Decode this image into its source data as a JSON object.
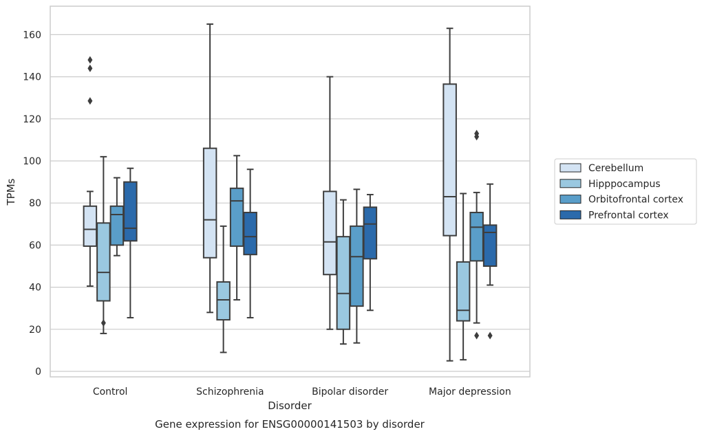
{
  "chart_data": {
    "type": "box",
    "caption": "Gene expression for ENSG00000141503 by disorder",
    "xlabel": "Disorder",
    "ylabel": "TPMs",
    "ylim": [
      -2.5,
      174
    ],
    "yticks": [
      0,
      20,
      40,
      60,
      80,
      100,
      120,
      140,
      160
    ],
    "grid": true,
    "legend_position": "right",
    "categories": [
      "Control",
      "Schizophrenia",
      "Bipolar disorder",
      "Major depression"
    ],
    "series": [
      {
        "name": "Cerebellum",
        "color": "#d3e3f3",
        "boxes": [
          {
            "whisker_low": 40.5,
            "q1": 59.5,
            "median": 67.5,
            "q3": 78.5,
            "whisker_high": 85.5,
            "outliers": [
              128.5,
              144,
              148
            ]
          },
          {
            "whisker_low": 28,
            "q1": 54,
            "median": 72,
            "q3": 106,
            "whisker_high": 165,
            "outliers": []
          },
          {
            "whisker_low": 20,
            "q1": 46,
            "median": 61.5,
            "q3": 85.5,
            "whisker_high": 140,
            "outliers": []
          },
          {
            "whisker_low": 5,
            "q1": 64.5,
            "median": 83,
            "q3": 136.5,
            "whisker_high": 163,
            "outliers": []
          }
        ]
      },
      {
        "name": "Hipppocampus",
        "color": "#9ac8e0",
        "boxes": [
          {
            "whisker_low": 18,
            "q1": 33.5,
            "median": 47,
            "q3": 70.5,
            "whisker_high": 102,
            "outliers": [
              23
            ]
          },
          {
            "whisker_low": 9,
            "q1": 24.5,
            "median": 34,
            "q3": 42.5,
            "whisker_high": 69,
            "outliers": []
          },
          {
            "whisker_low": 13,
            "q1": 20,
            "median": 37,
            "q3": 64,
            "whisker_high": 81.5,
            "outliers": []
          },
          {
            "whisker_low": 5.5,
            "q1": 24,
            "median": 29,
            "q3": 52,
            "whisker_high": 84.5,
            "outliers": []
          }
        ]
      },
      {
        "name": "Orbitofrontal cortex",
        "color": "#5a9ec9",
        "boxes": [
          {
            "whisker_low": 55,
            "q1": 60,
            "median": 74.5,
            "q3": 78.5,
            "whisker_high": 92,
            "outliers": []
          },
          {
            "whisker_low": 34,
            "q1": 59.5,
            "median": 81,
            "q3": 87,
            "whisker_high": 102.5,
            "outliers": []
          },
          {
            "whisker_low": 13.5,
            "q1": 31,
            "median": 54.5,
            "q3": 69,
            "whisker_high": 86.5,
            "outliers": []
          },
          {
            "whisker_low": 23,
            "q1": 52.5,
            "median": 68.5,
            "q3": 75.5,
            "whisker_high": 85,
            "outliers": [
              17,
              111.5,
              113
            ]
          }
        ]
      },
      {
        "name": "Prefrontal cortex",
        "color": "#2b6aab",
        "boxes": [
          {
            "whisker_low": 25.5,
            "q1": 62,
            "median": 68,
            "q3": 90,
            "whisker_high": 96.5,
            "outliers": []
          },
          {
            "whisker_low": 25.5,
            "q1": 55.5,
            "median": 64,
            "q3": 75.5,
            "whisker_high": 96,
            "outliers": []
          },
          {
            "whisker_low": 29,
            "q1": 53.5,
            "median": 70,
            "q3": 78,
            "whisker_high": 84,
            "outliers": []
          },
          {
            "whisker_low": 41,
            "q1": 50,
            "median": 66,
            "q3": 69.5,
            "whisker_high": 89,
            "outliers": [
              17
            ]
          }
        ]
      }
    ]
  }
}
